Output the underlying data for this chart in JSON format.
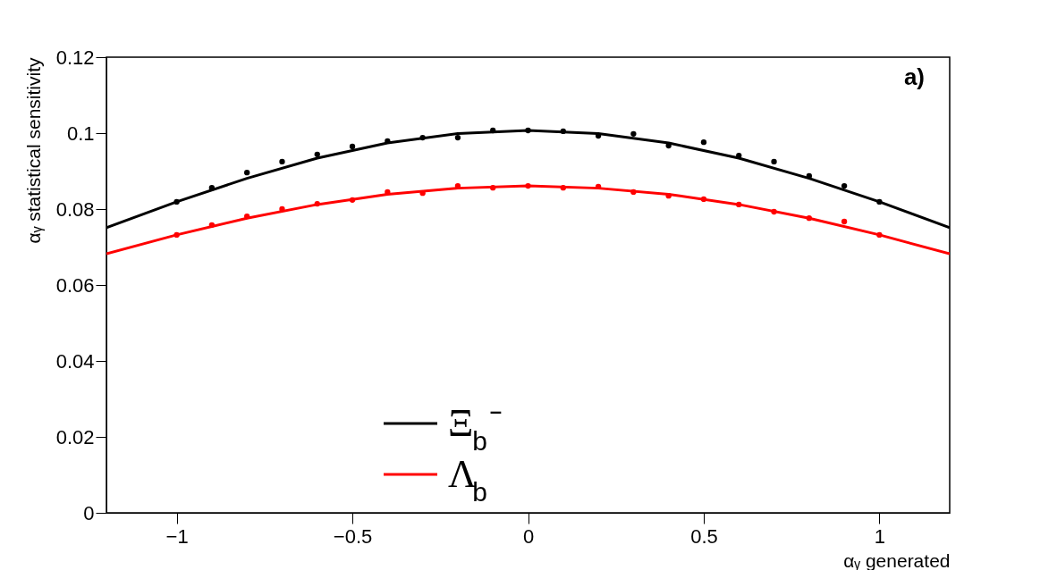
{
  "chart_data": {
    "type": "scatter",
    "xlabel": "αᵧ generated",
    "ylabel": "αᵧ statistical sensitivity",
    "xlim": [
      -1.2,
      1.2
    ],
    "ylim": [
      0,
      0.12
    ],
    "xticks": [
      {
        "value": -1,
        "label": "−1"
      },
      {
        "value": -0.5,
        "label": "−0.5"
      },
      0,
      0.5,
      1
    ],
    "yticks": [
      0,
      0.02,
      0.04,
      0.06,
      0.08,
      0.1,
      0.12
    ],
    "grid": false,
    "legend": "bottom",
    "marker": "circle",
    "annotations": [
      "a)"
    ],
    "x": [
      -1,
      -0.9,
      -0.8,
      -0.7,
      -0.6,
      -0.5,
      -0.4,
      -0.3,
      -0.2,
      -0.1,
      0,
      0.1,
      0.2,
      0.3,
      0.4,
      0.5,
      0.6,
      0.7,
      0.8,
      0.9,
      1
    ],
    "series": [
      {
        "color": "#000000",
        "values": [
          0.0819,
          0.0856,
          0.0896,
          0.0925,
          0.0944,
          0.0965,
          0.0979,
          0.0988,
          0.0988,
          0.1007,
          0.1007,
          0.1005,
          0.0993,
          0.0998,
          0.0967,
          0.0976,
          0.0941,
          0.0925,
          0.0887,
          0.0861,
          0.0819
        ],
        "errors": [
          0.0005,
          0.0005,
          0.0005,
          0.0005,
          0.0005,
          0.0005,
          0.0005,
          0.0005,
          0.0005,
          0.0005,
          0.0005,
          0.0005,
          0.0005,
          0.0005,
          0.0005,
          0.0005,
          0.0005,
          0.0005,
          0.0005,
          0.0005,
          0.0005
        ]
      },
      {
        "color": "#ff0000",
        "values": [
          0.0732,
          0.0758,
          0.0781,
          0.08,
          0.0814,
          0.0824,
          0.0845,
          0.0842,
          0.0861,
          0.0856,
          0.0861,
          0.0856,
          0.0859,
          0.0845,
          0.0835,
          0.0826,
          0.0812,
          0.0793,
          0.0776,
          0.0767,
          0.0732
        ],
        "errors": [
          0.0005,
          0.0005,
          0.0005,
          0.0005,
          0.0005,
          0.0005,
          0.0005,
          0.0005,
          0.0005,
          0.0005,
          0.0005,
          0.0005,
          0.0005,
          0.0005,
          0.0005,
          0.0005,
          0.0005,
          0.0005,
          0.0005,
          0.0005,
          0.0005
        ]
      },
      {
        "type": "line",
        "name": "Ξ$_{b}$⁻",
        "color": "#000000",
        "line_style": "solid",
        "marker": "none",
        "x": [
          -1.2,
          -1,
          -0.8,
          -0.6,
          -0.4,
          -0.2,
          0,
          0.2,
          0.4,
          0.6,
          0.8,
          1,
          1.2
        ],
        "values": [
          0.0751,
          0.0819,
          0.0881,
          0.0934,
          0.0974,
          0.0999,
          0.1007,
          0.0999,
          0.0974,
          0.0934,
          0.0881,
          0.0819,
          0.0751
        ]
      },
      {
        "type": "line",
        "name": "Λ$_{b}$",
        "color": "#ff0000",
        "line_style": "solid",
        "marker": "none",
        "x": [
          -1.2,
          -1,
          -0.8,
          -0.6,
          -0.4,
          -0.2,
          0,
          0.2,
          0.4,
          0.6,
          0.8,
          1,
          1.2
        ],
        "values": [
          0.0682,
          0.0732,
          0.0776,
          0.0812,
          0.0839,
          0.0855,
          0.0861,
          0.0855,
          0.0839,
          0.0812,
          0.0776,
          0.0732,
          0.0682
        ]
      }
    ]
  }
}
